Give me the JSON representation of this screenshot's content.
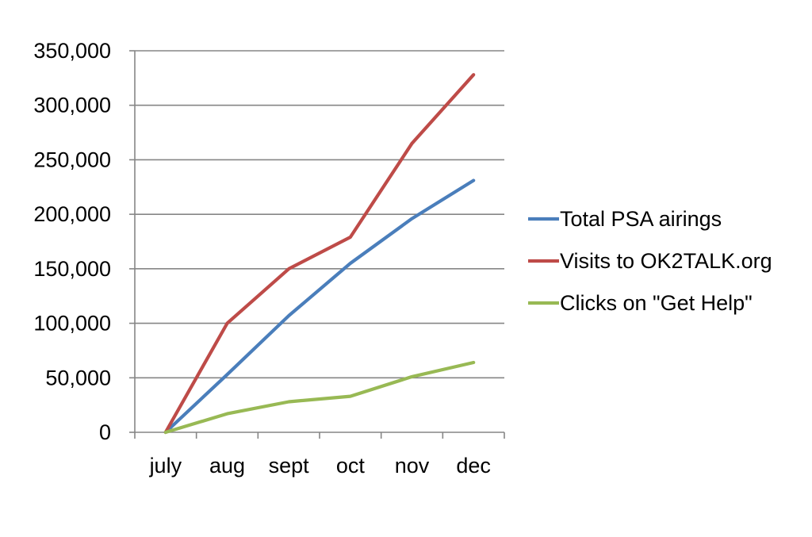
{
  "chart_data": {
    "type": "line",
    "categories": [
      "july",
      "aug",
      "sept",
      "oct",
      "nov",
      "dec"
    ],
    "series": [
      {
        "name": "Total PSA airings",
        "color": "#4a7ebb",
        "values": [
          0,
          53000,
          107000,
          155000,
          196000,
          231000
        ]
      },
      {
        "name": "Visits to OK2TALK.org",
        "color": "#be4b48",
        "values": [
          0,
          100000,
          150000,
          179000,
          265000,
          328000
        ]
      },
      {
        "name": "Clicks on \"Get Help\"",
        "color": "#98b954",
        "values": [
          0,
          17000,
          28000,
          33000,
          51000,
          64000
        ]
      }
    ],
    "ylim": [
      0,
      350000
    ],
    "yticks": [
      {
        "value": 0,
        "label": "0"
      },
      {
        "value": 50000,
        "label": "50,000"
      },
      {
        "value": 100000,
        "label": "100,000"
      },
      {
        "value": 150000,
        "label": "150,000"
      },
      {
        "value": 200000,
        "label": "200,000"
      },
      {
        "value": 250000,
        "label": "250,000"
      },
      {
        "value": 300000,
        "label": "300,000"
      },
      {
        "value": 350000,
        "label": "350,000"
      }
    ],
    "grid": "horizontal",
    "legend_position": "right",
    "title": "",
    "xlabel": "",
    "ylabel": ""
  }
}
